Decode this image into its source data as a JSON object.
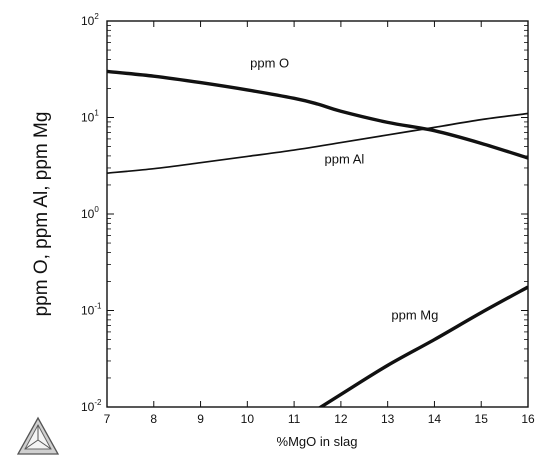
{
  "chart_data": {
    "type": "line",
    "title": "",
    "xlabel": "%MgO in slag",
    "ylabel": "ppm O, ppm Al, ppm Mg",
    "xlim": [
      7,
      16
    ],
    "ylim": [
      0.01,
      100
    ],
    "yscale": "log",
    "grid": false,
    "x_ticks": [
      7,
      8,
      9,
      10,
      11,
      12,
      13,
      14,
      15,
      16
    ],
    "y_ticks": [
      {
        "value": 0.01,
        "base": "10",
        "exp": "-2"
      },
      {
        "value": 0.1,
        "base": "10",
        "exp": "-1"
      },
      {
        "value": 1,
        "base": "10",
        "exp": "0"
      },
      {
        "value": 10,
        "base": "10",
        "exp": "1"
      },
      {
        "value": 100,
        "base": "10",
        "exp": "2"
      }
    ],
    "series": [
      {
        "name": "ppm O",
        "line_width": "thick",
        "x": [
          7,
          8,
          9,
          10,
          11,
          11.5,
          12,
          13,
          14,
          15,
          16
        ],
        "y": [
          30,
          26.8,
          23,
          19.3,
          15.8,
          13.8,
          11.6,
          8.9,
          7.3,
          5.4,
          3.8
        ]
      },
      {
        "name": "ppm Al",
        "line_width": "normal",
        "x": [
          7,
          8,
          9,
          10,
          11,
          12,
          13,
          14,
          15,
          16
        ],
        "y": [
          2.65,
          2.95,
          3.4,
          3.95,
          4.6,
          5.5,
          6.6,
          7.9,
          9.5,
          11
        ]
      },
      {
        "name": "ppm Mg",
        "line_width": "thick",
        "x": [
          11.5,
          12,
          13,
          14,
          15,
          16
        ],
        "y": [
          0.0095,
          0.0135,
          0.027,
          0.05,
          0.095,
          0.175
        ]
      }
    ],
    "annotations": [
      {
        "text": "ppm O",
        "x": 10.06,
        "y": 32.8
      },
      {
        "text": "ppm Al",
        "x": 11.65,
        "y": 3.35
      },
      {
        "text": "ppm Mg",
        "x": 13.08,
        "y": 0.081
      }
    ]
  },
  "logo_icon": "thermo-calc-triangle-logo"
}
